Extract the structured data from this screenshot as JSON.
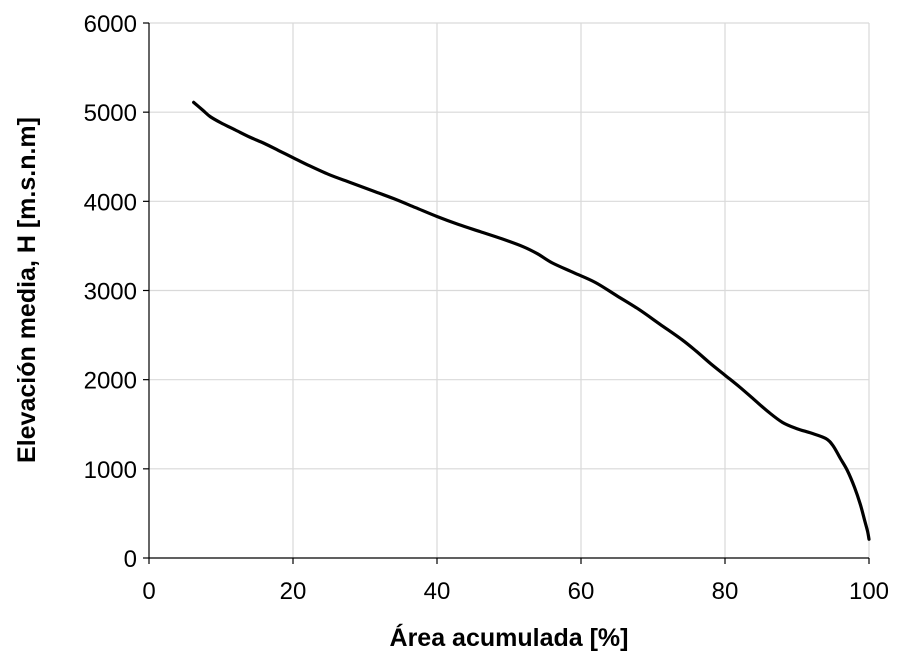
{
  "chart_data": {
    "type": "line",
    "title": "",
    "xlabel": "Área acumulada [%]",
    "ylabel": "Elevación media, H [m.s.n.m]",
    "xlim": [
      0,
      100
    ],
    "ylim": [
      0,
      6000
    ],
    "xticks": [
      0,
      20,
      40,
      60,
      80,
      100
    ],
    "yticks": [
      0,
      1000,
      2000,
      3000,
      4000,
      5000,
      6000
    ],
    "grid": true,
    "legend": "none",
    "colors": {
      "line": "#000000",
      "grid": "#d9d9d9",
      "axis": "#000000"
    },
    "series": [
      {
        "x": [
          6.2,
          7.5,
          8.5,
          10,
          12,
          14,
          16,
          18,
          20,
          22,
          25,
          28,
          31,
          34,
          37,
          40,
          43,
          46,
          49,
          52,
          54,
          56,
          59,
          62,
          65,
          68,
          71,
          74,
          76,
          78,
          80,
          82,
          84,
          86,
          88,
          90,
          92,
          94,
          95,
          96,
          97,
          98,
          98.8,
          99.4,
          99.8,
          100
        ],
        "y": [
          5110,
          5020,
          4950,
          4880,
          4800,
          4720,
          4650,
          4570,
          4490,
          4410,
          4300,
          4210,
          4120,
          4030,
          3930,
          3830,
          3740,
          3660,
          3580,
          3490,
          3410,
          3310,
          3200,
          3090,
          2940,
          2790,
          2620,
          2450,
          2320,
          2180,
          2050,
          1920,
          1780,
          1640,
          1520,
          1450,
          1400,
          1340,
          1260,
          1120,
          980,
          790,
          600,
          420,
          300,
          210
        ]
      }
    ]
  }
}
